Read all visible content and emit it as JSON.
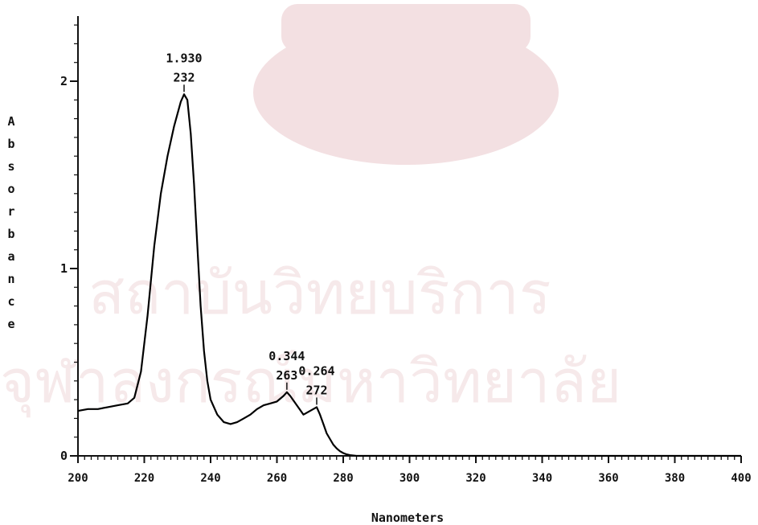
{
  "chart_data": {
    "type": "line",
    "title": "",
    "xlabel": "Nanometers",
    "ylabel": "Absorbance",
    "xlim": [
      200,
      400
    ],
    "ylim": [
      0,
      2.35
    ],
    "x_ticks": [
      "200",
      "220",
      "240",
      "260",
      "280",
      "300",
      "320",
      "340",
      "360",
      "380",
      "400"
    ],
    "y_ticks": [
      "0",
      "1",
      "2"
    ],
    "grid": false,
    "series": [
      {
        "color": "#000000",
        "x": [
          200,
          203,
          206,
          209,
          212,
          215,
          217,
          219,
          221,
          223,
          225,
          227,
          229,
          231,
          232,
          233,
          234,
          235,
          236,
          237,
          238,
          239,
          240,
          242,
          244,
          246,
          248,
          250,
          252,
          254,
          256,
          258,
          260,
          262,
          263,
          264,
          266,
          268,
          270,
          272,
          273,
          274,
          275,
          276,
          277,
          278,
          279,
          280,
          281,
          282,
          284,
          290,
          300,
          320,
          340,
          360,
          380,
          400
        ],
        "y": [
          0.24,
          0.25,
          0.25,
          0.26,
          0.27,
          0.28,
          0.31,
          0.45,
          0.75,
          1.12,
          1.4,
          1.6,
          1.76,
          1.89,
          1.93,
          1.9,
          1.72,
          1.45,
          1.12,
          0.8,
          0.56,
          0.4,
          0.3,
          0.22,
          0.18,
          0.17,
          0.18,
          0.2,
          0.22,
          0.25,
          0.27,
          0.28,
          0.29,
          0.32,
          0.34,
          0.32,
          0.27,
          0.22,
          0.24,
          0.26,
          0.22,
          0.17,
          0.12,
          0.09,
          0.06,
          0.04,
          0.025,
          0.015,
          0.008,
          0.004,
          0.0,
          0.0,
          0.0,
          0.0,
          0.0,
          0.0,
          0.0,
          0.0
        ]
      }
    ],
    "annotations": [
      {
        "value": "1.930",
        "wavelength": "232",
        "x": 232,
        "y": 1.93
      },
      {
        "value": "0.344",
        "wavelength": "263",
        "x": 263,
        "y": 0.34
      },
      {
        "value": "0.264",
        "wavelength": "272",
        "x": 272,
        "y": 0.26
      }
    ]
  }
}
